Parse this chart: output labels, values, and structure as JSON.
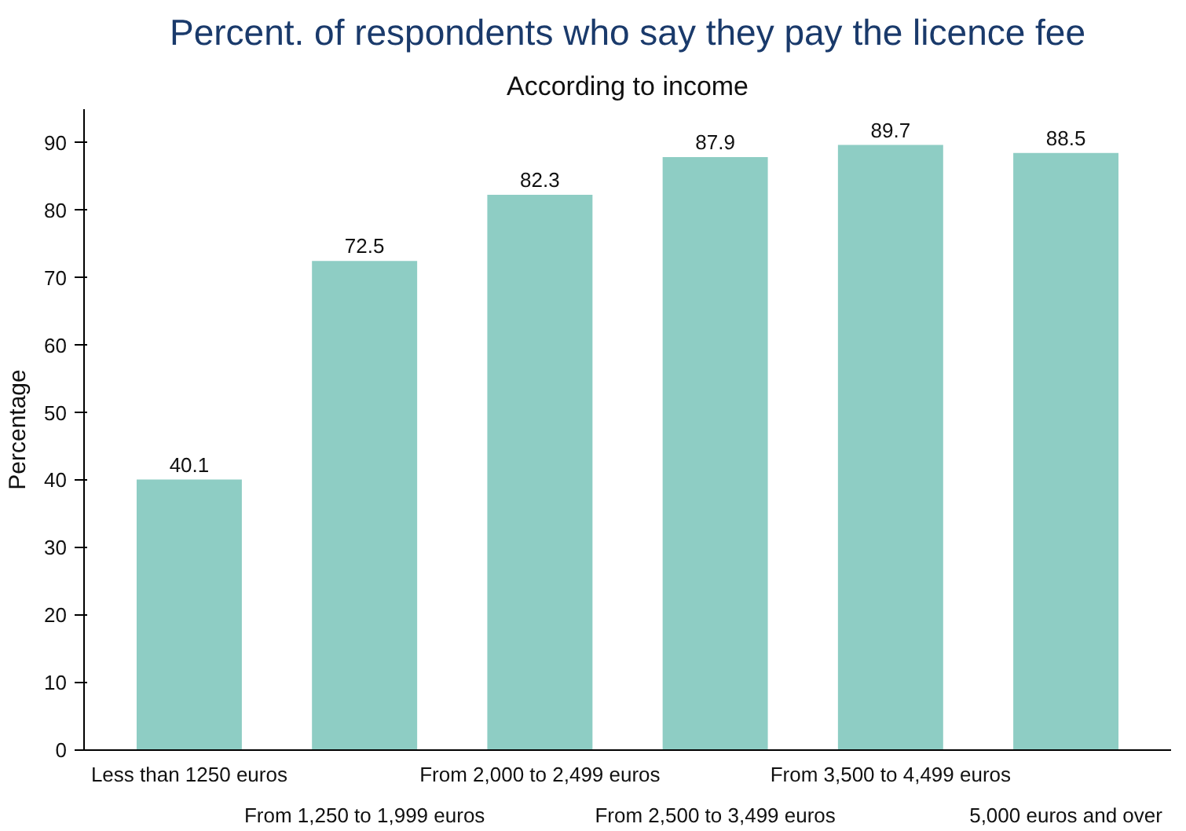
{
  "chart_data": {
    "type": "bar",
    "title": "Percent. of respondents who say they pay the licence fee",
    "subtitle": "According to income",
    "ylabel": "Percentage",
    "categories": [
      "Less than 1250 euros",
      "From 1,250 to 1,999 euros",
      "From 2,000 to 2,499 euros",
      "From 2,500 to 3,499 euros",
      "From 3,500 to 4,499 euros",
      "5,000 euros and over"
    ],
    "values": [
      40.1,
      72.5,
      82.3,
      87.9,
      89.7,
      88.5
    ],
    "color": "#8ecdc4",
    "ylim": [
      0,
      95
    ],
    "yticks": [
      0,
      10,
      20,
      30,
      40,
      50,
      60,
      70,
      80,
      90
    ],
    "data_labels": true,
    "grid": false
  }
}
